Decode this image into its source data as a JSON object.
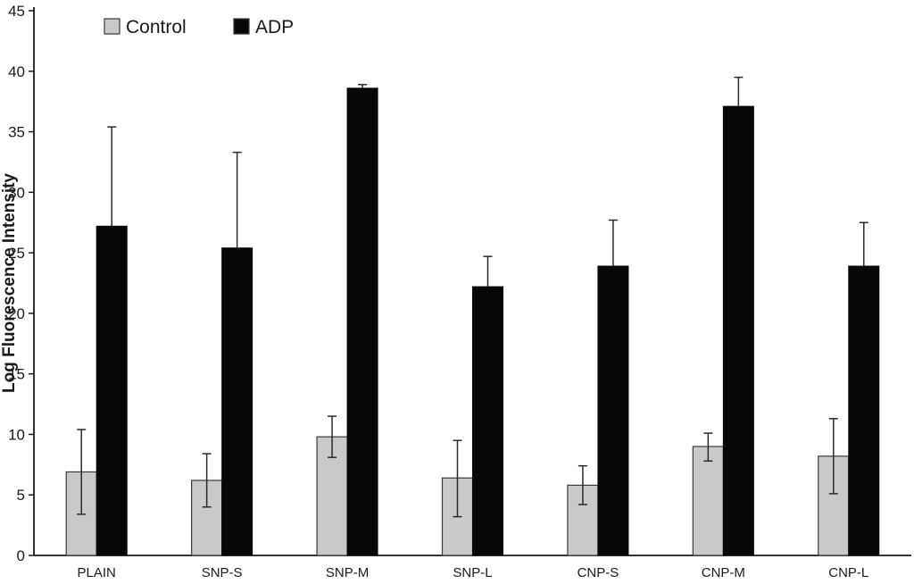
{
  "chart_data": {
    "type": "bar",
    "title": "",
    "xlabel": "",
    "ylabel": "Log Fluorescence Intensity",
    "ylim": [
      0,
      45
    ],
    "ytick_step": 5,
    "grid": false,
    "legend_position": "top-left",
    "categories": [
      "PLAIN",
      "SNP-S",
      "SNP-M",
      "SNP-L",
      "CNP-S",
      "CNP-M",
      "CNP-L"
    ],
    "series": [
      {
        "name": "Control",
        "color": "#c9c9c9",
        "border_color": "#3a3a3a",
        "values": [
          6.9,
          6.2,
          9.8,
          6.4,
          5.8,
          9.0,
          8.2
        ],
        "errors_up": [
          3.5,
          2.2,
          1.7,
          3.1,
          1.6,
          1.1,
          3.1
        ],
        "errors_down": [
          3.5,
          2.2,
          1.7,
          3.2,
          1.6,
          1.2,
          3.1
        ]
      },
      {
        "name": "ADP",
        "color": "#070707",
        "border_color": "#070707",
        "values": [
          27.2,
          25.4,
          38.6,
          22.2,
          23.9,
          37.1,
          23.9
        ],
        "errors_up": [
          8.2,
          7.9,
          0.3,
          2.5,
          3.8,
          2.4,
          3.6
        ],
        "errors_down": [
          0,
          0,
          0,
          0,
          0,
          0,
          0
        ]
      }
    ],
    "colors": {
      "axis": "#1a1a1a",
      "error_bar": "#2b2b2b",
      "background": "#ffffff"
    }
  }
}
